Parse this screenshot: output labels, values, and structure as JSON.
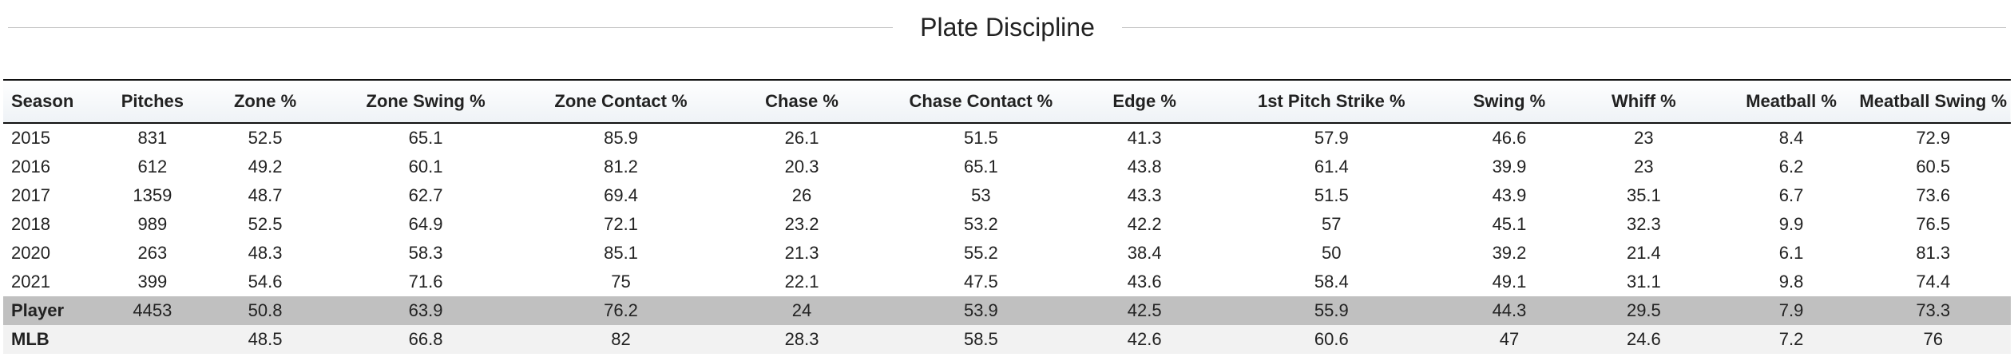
{
  "title": "Plate Discipline",
  "columns": [
    "Season",
    "Pitches",
    "Zone %",
    "Zone Swing %",
    "Zone Contact %",
    "Chase %",
    "Chase Contact %",
    "Edge %",
    "1st Pitch Strike %",
    "Swing %",
    "Whiff %",
    "Meatball %",
    "Meatball Swing %"
  ],
  "rows": [
    [
      "2015",
      "831",
      "52.5",
      "65.1",
      "85.9",
      "26.1",
      "51.5",
      "41.3",
      "57.9",
      "46.6",
      "23",
      "8.4",
      "72.9"
    ],
    [
      "2016",
      "612",
      "49.2",
      "60.1",
      "81.2",
      "20.3",
      "65.1",
      "43.8",
      "61.4",
      "39.9",
      "23",
      "6.2",
      "60.5"
    ],
    [
      "2017",
      "1359",
      "48.7",
      "62.7",
      "69.4",
      "26",
      "53",
      "43.3",
      "51.5",
      "43.9",
      "35.1",
      "6.7",
      "73.6"
    ],
    [
      "2018",
      "989",
      "52.5",
      "64.9",
      "72.1",
      "23.2",
      "53.2",
      "42.2",
      "57",
      "45.1",
      "32.3",
      "9.9",
      "76.5"
    ],
    [
      "2020",
      "263",
      "48.3",
      "58.3",
      "85.1",
      "21.3",
      "55.2",
      "38.4",
      "50",
      "39.2",
      "21.4",
      "6.1",
      "81.3"
    ],
    [
      "2021",
      "399",
      "54.6",
      "71.6",
      "75",
      "22.1",
      "47.5",
      "43.6",
      "58.4",
      "49.1",
      "31.1",
      "9.8",
      "74.4"
    ]
  ],
  "player_row": [
    "Player",
    "4453",
    "50.8",
    "63.9",
    "76.2",
    "24",
    "53.9",
    "42.5",
    "55.9",
    "44.3",
    "29.5",
    "7.9",
    "73.3"
  ],
  "mlb_row": [
    "MLB",
    "",
    "48.5",
    "66.8",
    "82",
    "28.3",
    "58.5",
    "42.6",
    "60.6",
    "47",
    "24.6",
    "7.2",
    "76"
  ],
  "colors": {
    "player_row_bg": "#c0c0c0",
    "mlb_row_bg": "#f2f2f2",
    "header_border": "#111111",
    "title_rule": "#c8c8c8"
  }
}
